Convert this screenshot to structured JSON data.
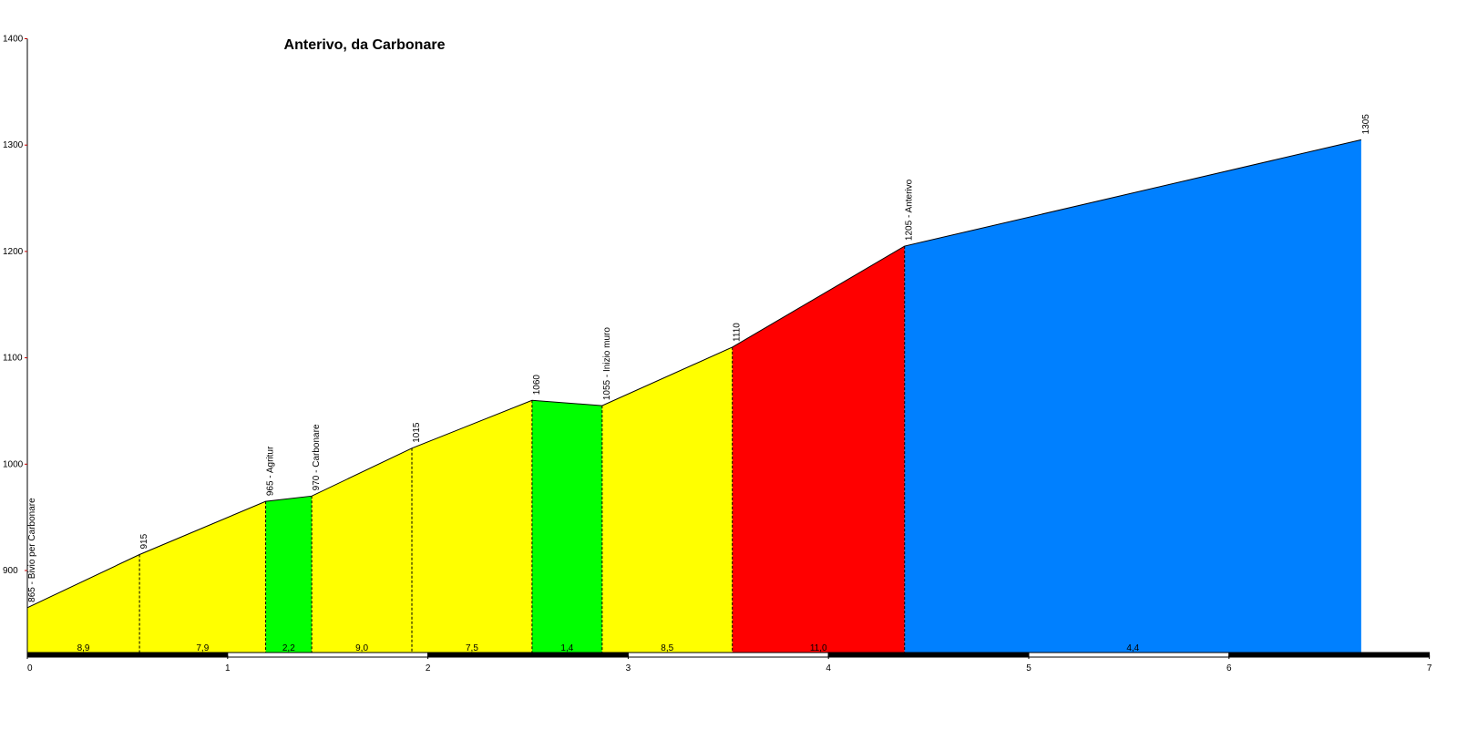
{
  "chart_data": {
    "type": "area",
    "title": "Anterivo, da Carbonare",
    "xlabel": "",
    "ylabel": "",
    "xlim": [
      0,
      7
    ],
    "ylim": [
      820,
      1400
    ],
    "x_ticks": [
      0,
      1,
      2,
      3,
      4,
      5,
      6,
      7
    ],
    "y_ticks": [
      900,
      1000,
      1100,
      1200,
      1300,
      1400
    ],
    "x_tick_labels": [
      "0",
      "1",
      "2",
      "3",
      "4",
      "5",
      "6",
      "7"
    ],
    "y_tick_labels": [
      "900",
      "1000",
      "1100",
      "1200",
      "1300",
      "1400"
    ],
    "grid": false,
    "points": [
      {
        "x": 0.0,
        "y": 865,
        "label": "865 - Bivio per Carbonare"
      },
      {
        "x": 0.56,
        "y": 915,
        "label": "915"
      },
      {
        "x": 1.19,
        "y": 965,
        "label": "965 - Agritur"
      },
      {
        "x": 1.42,
        "y": 970,
        "label": "970 - Carbonare"
      },
      {
        "x": 1.92,
        "y": 1015,
        "label": "1015"
      },
      {
        "x": 2.52,
        "y": 1060,
        "label": "1060"
      },
      {
        "x": 2.87,
        "y": 1055,
        "label": "1055 - Inizio muro"
      },
      {
        "x": 3.52,
        "y": 1110,
        "label": "1110"
      },
      {
        "x": 4.38,
        "y": 1205,
        "label": "1205 - Anterivo"
      },
      {
        "x": 6.66,
        "y": 1305,
        "label": "1305"
      }
    ],
    "segments": [
      {
        "from": 0,
        "to": 1,
        "gradient": "8,9",
        "color": "#ffff00"
      },
      {
        "from": 1,
        "to": 2,
        "gradient": "7,9",
        "color": "#ffff00"
      },
      {
        "from": 2,
        "to": 3,
        "gradient": "2,2",
        "color": "#00ff00"
      },
      {
        "from": 3,
        "to": 4,
        "gradient": "9,0",
        "color": "#ffff00"
      },
      {
        "from": 4,
        "to": 5,
        "gradient": "7,5",
        "color": "#ffff00"
      },
      {
        "from": 5,
        "to": 6,
        "gradient": "1,4",
        "color": "#00ff00"
      },
      {
        "from": 6,
        "to": 7,
        "gradient": "8,5",
        "color": "#ffff00"
      },
      {
        "from": 7,
        "to": 8,
        "gradient": "11,0",
        "color": "#ff0000"
      },
      {
        "from": 8,
        "to": 9,
        "gradient": "4,4",
        "color": "#0080ff"
      }
    ]
  }
}
